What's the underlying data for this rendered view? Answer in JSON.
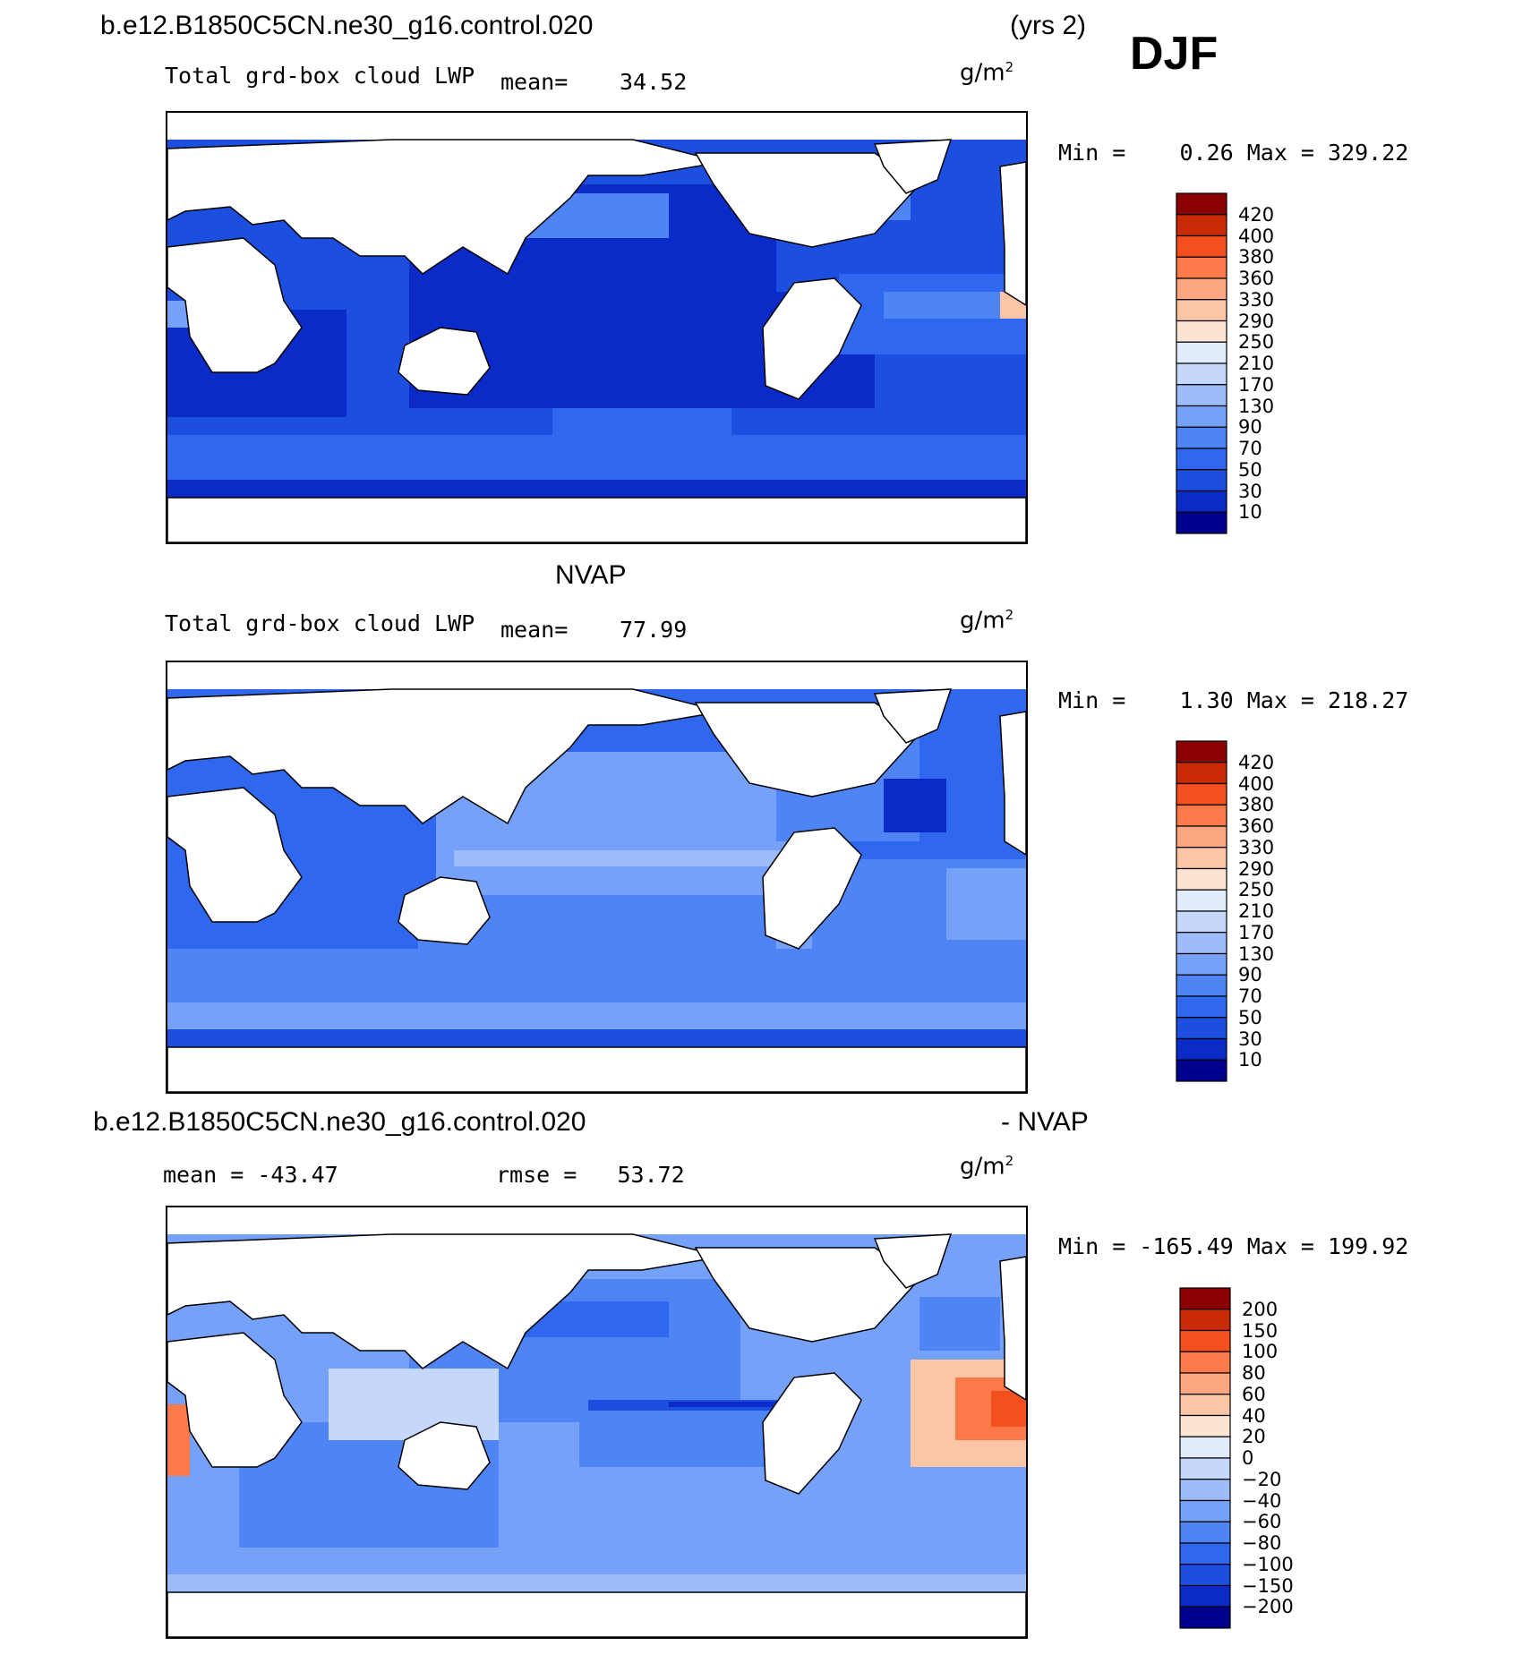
{
  "figure": {
    "case_title_top": "b.e12.B1850C5CN.ne30_g16.control.020",
    "years": "(yrs 2)",
    "season": "DJF",
    "obs_title": "NVAP",
    "diff_case_title": "b.e12.B1850C5CN.ne30_g16.control.020",
    "diff_suffix": "- NVAP"
  },
  "panels": [
    {
      "id": "model",
      "variable": "Total grd-box cloud LWP",
      "mean_label": "mean=",
      "mean_value": "34.52",
      "unit": "g/m",
      "unit_sup": "2",
      "minmax": "Min =    0.26 Max = 329.22"
    },
    {
      "id": "obs",
      "variable": "Total grd-box cloud LWP",
      "mean_label": "mean=",
      "mean_value": "77.99",
      "unit": "g/m",
      "unit_sup": "2",
      "minmax": "Min =    1.30 Max = 218.27"
    },
    {
      "id": "diff",
      "mean_text": "mean = -43.47",
      "rmse_text": "rmse =   53.72",
      "unit": "g/m",
      "unit_sup": "2",
      "minmax": "Min = -165.49 Max = 199.92"
    }
  ],
  "chart_data": [
    {
      "type": "heatmap",
      "title": "Total grd-box cloud LWP",
      "subtitle": "b.e12.B1850C5CN.ne30_g16.control.020 (yrs 2) DJF",
      "units": "g/m2",
      "mean": 34.52,
      "min": 0.26,
      "max": 329.22,
      "colorbar_levels": [
        10,
        30,
        50,
        70,
        90,
        130,
        170,
        210,
        250,
        290,
        330,
        360,
        380,
        400,
        420
      ],
      "colorbar_colors": [
        "#00008f",
        "#0a2bc8",
        "#1c4fe0",
        "#2f67ee",
        "#4f84f5",
        "#76a1f8",
        "#9dbcfa",
        "#c5d8fb",
        "#e0ecfb",
        "#fbe4d2",
        "#fcc5a6",
        "#fca77f",
        "#fc7a4a",
        "#f44f1e",
        "#c92a08",
        "#8b0000"
      ],
      "colorbar_ticks": [
        "420",
        "400",
        "380",
        "360",
        "330",
        "290",
        "250",
        "210",
        "170",
        "130",
        "90",
        "70",
        "50",
        "30",
        "10"
      ],
      "projection": "cylindrical equidistant, Pacific-centred, ocean only"
    },
    {
      "type": "heatmap",
      "title": "Total grd-box cloud LWP",
      "subtitle": "NVAP",
      "units": "g/m2",
      "mean": 77.99,
      "min": 1.3,
      "max": 218.27,
      "colorbar_levels": [
        10,
        30,
        50,
        70,
        90,
        130,
        170,
        210,
        250,
        290,
        330,
        360,
        380,
        400,
        420
      ],
      "colorbar_colors": [
        "#00008f",
        "#0a2bc8",
        "#1c4fe0",
        "#2f67ee",
        "#4f84f5",
        "#76a1f8",
        "#9dbcfa",
        "#c5d8fb",
        "#e0ecfb",
        "#fbe4d2",
        "#fcc5a6",
        "#fca77f",
        "#fc7a4a",
        "#f44f1e",
        "#c92a08",
        "#8b0000"
      ],
      "colorbar_ticks": [
        "420",
        "400",
        "380",
        "360",
        "330",
        "290",
        "250",
        "210",
        "170",
        "130",
        "90",
        "70",
        "50",
        "30",
        "10"
      ],
      "projection": "cylindrical equidistant, Pacific-centred, ocean only"
    },
    {
      "type": "heatmap",
      "title": "b.e12.B1850C5CN.ne30_g16.control.020 - NVAP",
      "units": "g/m2",
      "mean": -43.47,
      "rmse": 53.72,
      "min": -165.49,
      "max": 199.92,
      "colorbar_levels": [
        -200,
        -150,
        -100,
        -80,
        -60,
        -40,
        -20,
        0,
        20,
        40,
        60,
        80,
        100,
        150,
        200
      ],
      "colorbar_colors": [
        "#00008f",
        "#0a2bc8",
        "#1c4fe0",
        "#2f67ee",
        "#4f84f5",
        "#76a1f8",
        "#9dbcfa",
        "#c5d8fb",
        "#e0ecfb",
        "#fbe4d2",
        "#fcc5a6",
        "#fca77f",
        "#fc7a4a",
        "#f44f1e",
        "#c92a08",
        "#8b0000"
      ],
      "colorbar_ticks": [
        "200",
        "150",
        "100",
        "80",
        "60",
        "40",
        "20",
        "0",
        "−20",
        "−40",
        "−60",
        "−80",
        "−100",
        "−150",
        "−200"
      ],
      "projection": "cylindrical equidistant, Pacific-centred, ocean only"
    }
  ]
}
